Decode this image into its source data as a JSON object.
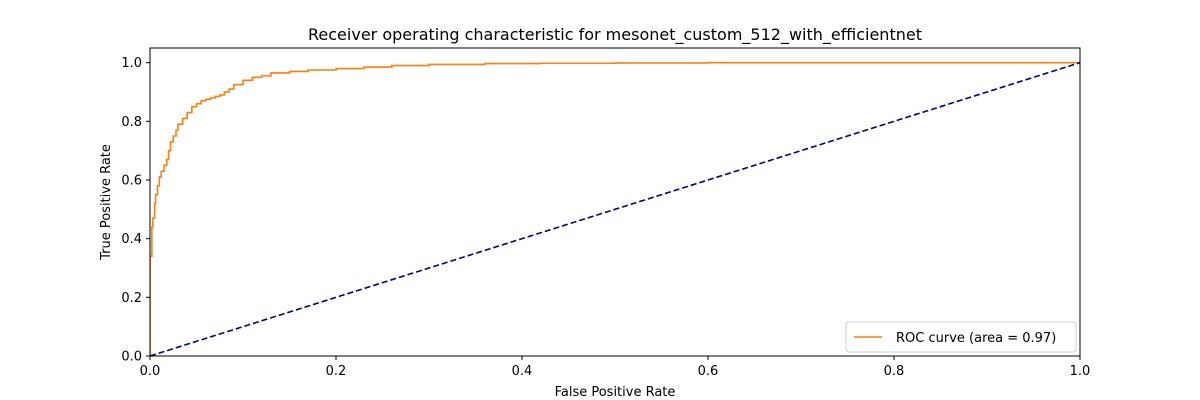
{
  "chart_data": {
    "type": "line",
    "title": "Receiver operating characteristic for mesonet_custom_512_with_efficientnet",
    "xlabel": "False Positive Rate",
    "ylabel": "True Positive Rate",
    "xlim": [
      0.0,
      1.0
    ],
    "ylim": [
      0.0,
      1.05
    ],
    "x_ticks": [
      "0.0",
      "0.2",
      "0.4",
      "0.6",
      "0.8",
      "1.0"
    ],
    "y_ticks": [
      "0.0",
      "0.2",
      "0.4",
      "0.6",
      "0.8",
      "1.0"
    ],
    "grid": false,
    "legend_position": "lower right",
    "series": [
      {
        "name": "ROC curve (area = 0.97)",
        "color": "#ff7f0e",
        "style": "step",
        "x": [
          0.0,
          0.0,
          0.002,
          0.003,
          0.005,
          0.006,
          0.008,
          0.01,
          0.012,
          0.015,
          0.018,
          0.02,
          0.022,
          0.025,
          0.028,
          0.03,
          0.035,
          0.04,
          0.045,
          0.05,
          0.055,
          0.06,
          0.065,
          0.07,
          0.075,
          0.08,
          0.085,
          0.09,
          0.1,
          0.11,
          0.12,
          0.13,
          0.15,
          0.17,
          0.2,
          0.23,
          0.26,
          0.3,
          0.36,
          0.42,
          0.5,
          0.6,
          0.8,
          1.0
        ],
        "y": [
          0.0,
          0.21,
          0.34,
          0.44,
          0.47,
          0.52,
          0.55,
          0.58,
          0.61,
          0.63,
          0.65,
          0.67,
          0.7,
          0.73,
          0.75,
          0.77,
          0.79,
          0.81,
          0.83,
          0.85,
          0.86,
          0.87,
          0.875,
          0.88,
          0.885,
          0.89,
          0.9,
          0.91,
          0.925,
          0.94,
          0.95,
          0.955,
          0.965,
          0.97,
          0.975,
          0.98,
          0.985,
          0.99,
          0.994,
          0.997,
          0.998,
          0.999,
          1.0,
          1.0
        ]
      },
      {
        "name": "",
        "color": "#000080",
        "style": "dashed",
        "x": [
          0.0,
          1.0
        ],
        "y": [
          0.0,
          1.0
        ]
      }
    ]
  }
}
